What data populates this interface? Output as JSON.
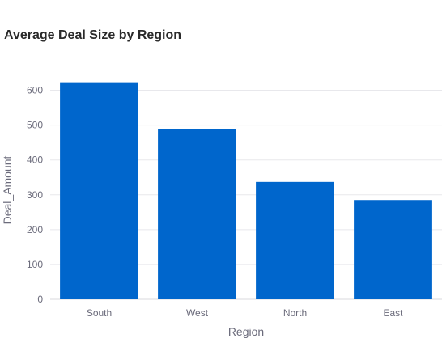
{
  "chart_data": {
    "type": "bar",
    "title": "Average Deal Size by Region",
    "xlabel": "Region",
    "ylabel": "Deal_Amount",
    "categories": [
      "South",
      "West",
      "North",
      "East"
    ],
    "values": [
      623,
      488,
      337,
      285
    ],
    "ylim": [
      0,
      650
    ],
    "yticks": [
      0,
      100,
      200,
      300,
      400,
      500,
      600
    ],
    "grid": true,
    "bar_color": "#0066cc"
  }
}
